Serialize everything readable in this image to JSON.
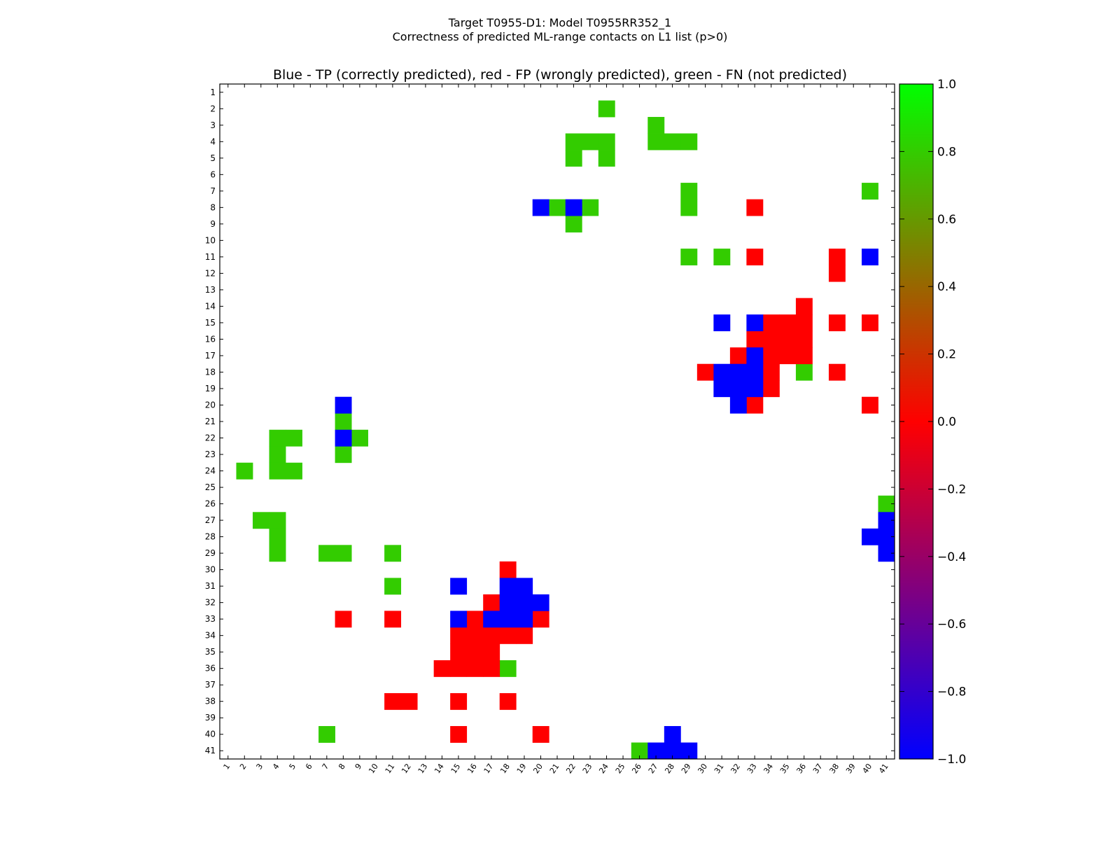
{
  "chart_data": {
    "type": "heatmap",
    "title_line1": "Target T0955-D1: Model T0955RR352_1",
    "title_line2": "Correctness of predicted ML-range contacts on L1 list (p>0)",
    "subtitle": "Blue - TP (correctly predicted), red - FP (wrongly predicted), green - FN (not predicted)",
    "n_residues": 41,
    "x_tick_labels": [
      "1",
      "2",
      "3",
      "4",
      "5",
      "6",
      "7",
      "8",
      "9",
      "10",
      "11",
      "12",
      "13",
      "14",
      "15",
      "16",
      "17",
      "18",
      "19",
      "20",
      "21",
      "22",
      "23",
      "24",
      "25",
      "26",
      "27",
      "28",
      "29",
      "30",
      "31",
      "32",
      "33",
      "34",
      "35",
      "36",
      "37",
      "38",
      "39",
      "40",
      "41"
    ],
    "y_tick_labels": [
      "1",
      "2",
      "3",
      "4",
      "5",
      "6",
      "7",
      "8",
      "9",
      "10",
      "11",
      "12",
      "13",
      "14",
      "15",
      "16",
      "17",
      "18",
      "19",
      "20",
      "21",
      "22",
      "23",
      "24",
      "25",
      "26",
      "27",
      "28",
      "29",
      "30",
      "31",
      "32",
      "33",
      "34",
      "35",
      "36",
      "37",
      "38",
      "39",
      "40",
      "41"
    ],
    "colorbar": {
      "min": -1.0,
      "max": 1.0,
      "tick_labels": [
        "1.0",
        "0.8",
        "0.6",
        "0.4",
        "0.2",
        "0.0",
        "−0.2",
        "−0.4",
        "−0.6",
        "−0.8",
        "−1.0"
      ],
      "tick_values": [
        1.0,
        0.8,
        0.6,
        0.4,
        0.2,
        0.0,
        -0.2,
        -0.4,
        -0.6,
        -0.8,
        -1.0
      ]
    },
    "category_colors": {
      "TP": "#0000ff",
      "FP": "#ff0000",
      "FN": "#33cc00"
    },
    "cells": {
      "TP": [
        [
          8,
          20
        ],
        [
          8,
          22
        ],
        [
          11,
          40
        ],
        [
          15,
          31
        ],
        [
          15,
          33
        ],
        [
          17,
          33
        ],
        [
          18,
          31
        ],
        [
          18,
          32
        ],
        [
          18,
          33
        ],
        [
          19,
          31
        ],
        [
          19,
          32
        ],
        [
          19,
          33
        ],
        [
          20,
          32
        ],
        [
          27,
          41
        ],
        [
          28,
          40
        ],
        [
          28,
          41
        ],
        [
          29,
          41
        ],
        [
          41,
          27
        ],
        [
          41,
          28
        ],
        [
          41,
          29
        ],
        [
          40,
          28
        ],
        [
          31,
          15
        ],
        [
          31,
          18
        ],
        [
          31,
          19
        ],
        [
          32,
          18
        ],
        [
          32,
          19
        ],
        [
          32,
          20
        ],
        [
          33,
          15
        ],
        [
          33,
          17
        ],
        [
          33,
          18
        ],
        [
          33,
          19
        ],
        [
          20,
          8
        ],
        [
          22,
          8
        ]
      ],
      "FP": [
        [
          8,
          33
        ],
        [
          11,
          33
        ],
        [
          11,
          38
        ],
        [
          12,
          38
        ],
        [
          14,
          36
        ],
        [
          15,
          34
        ],
        [
          15,
          35
        ],
        [
          15,
          36
        ],
        [
          15,
          38
        ],
        [
          15,
          40
        ],
        [
          16,
          33
        ],
        [
          16,
          34
        ],
        [
          16,
          35
        ],
        [
          16,
          36
        ],
        [
          17,
          32
        ],
        [
          17,
          34
        ],
        [
          17,
          35
        ],
        [
          17,
          36
        ],
        [
          18,
          30
        ],
        [
          18,
          34
        ],
        [
          18,
          38
        ],
        [
          19,
          34
        ],
        [
          20,
          33
        ],
        [
          20,
          40
        ],
        [
          30,
          18
        ],
        [
          32,
          17
        ],
        [
          33,
          8
        ],
        [
          33,
          11
        ],
        [
          33,
          16
        ],
        [
          33,
          20
        ],
        [
          34,
          15
        ],
        [
          34,
          16
        ],
        [
          34,
          17
        ],
        [
          34,
          18
        ],
        [
          34,
          19
        ],
        [
          35,
          15
        ],
        [
          35,
          16
        ],
        [
          35,
          17
        ],
        [
          36,
          14
        ],
        [
          36,
          15
        ],
        [
          36,
          16
        ],
        [
          36,
          17
        ],
        [
          38,
          11
        ],
        [
          38,
          12
        ],
        [
          38,
          15
        ],
        [
          38,
          18
        ],
        [
          40,
          15
        ],
        [
          40,
          20
        ]
      ],
      "FN": [
        [
          2,
          24
        ],
        [
          3,
          27
        ],
        [
          4,
          22
        ],
        [
          4,
          23
        ],
        [
          4,
          24
        ],
        [
          4,
          27
        ],
        [
          4,
          28
        ],
        [
          4,
          29
        ],
        [
          5,
          22
        ],
        [
          5,
          24
        ],
        [
          7,
          29
        ],
        [
          7,
          40
        ],
        [
          8,
          21
        ],
        [
          8,
          23
        ],
        [
          8,
          29
        ],
        [
          9,
          22
        ],
        [
          11,
          29
        ],
        [
          11,
          31
        ],
        [
          18,
          36
        ],
        [
          26,
          41
        ],
        [
          21,
          8
        ],
        [
          22,
          4
        ],
        [
          22,
          5
        ],
        [
          22,
          9
        ],
        [
          23,
          4
        ],
        [
          23,
          8
        ],
        [
          24,
          2
        ],
        [
          24,
          4
        ],
        [
          24,
          5
        ],
        [
          27,
          3
        ],
        [
          27,
          4
        ],
        [
          28,
          4
        ],
        [
          29,
          4
        ],
        [
          29,
          7
        ],
        [
          29,
          8
        ],
        [
          29,
          11
        ],
        [
          31,
          11
        ],
        [
          36,
          18
        ],
        [
          40,
          7
        ],
        [
          41,
          26
        ]
      ]
    }
  }
}
